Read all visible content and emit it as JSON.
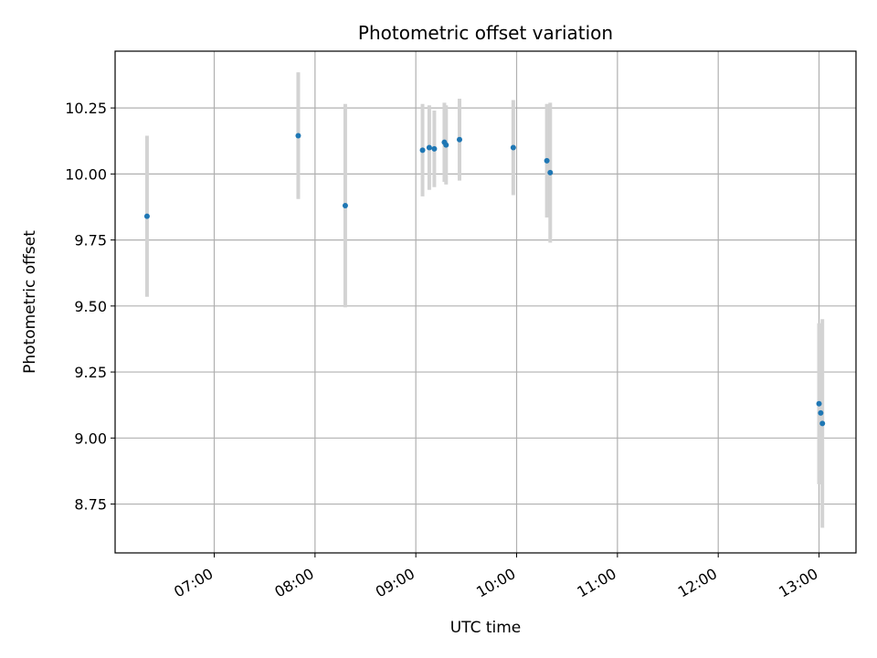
{
  "chart_data": {
    "type": "scatter",
    "title": "Photometric offset variation",
    "xlabel": "UTC time",
    "ylabel": "Photometric offset",
    "x_axis_kind": "time",
    "x_range": [
      "06:01",
      "13:22"
    ],
    "x_tick_labels": [
      "07:00",
      "08:00",
      "09:00",
      "10:00",
      "11:00",
      "12:00",
      "13:00"
    ],
    "ylim": [
      8.565,
      10.465
    ],
    "y_ticks": [
      8.75,
      9.0,
      9.25,
      9.5,
      9.75,
      10.0,
      10.25
    ],
    "y_tick_labels": [
      "8.75",
      "9.00",
      "9.25",
      "9.50",
      "9.75",
      "10.00",
      "10.25"
    ],
    "grid": true,
    "series": [
      {
        "marker_color": "#1f77b4",
        "errorbar_color": "#d3d3d3",
        "points": [
          {
            "x": "06:20",
            "y": 9.84,
            "yerr": 0.305
          },
          {
            "x": "07:50",
            "y": 10.145,
            "yerr": 0.24
          },
          {
            "x": "08:18",
            "y": 9.88,
            "yerr": 0.385
          },
          {
            "x": "09:04",
            "y": 10.09,
            "yerr": 0.175
          },
          {
            "x": "09:08",
            "y": 10.1,
            "yerr": 0.16
          },
          {
            "x": "09:11",
            "y": 10.095,
            "yerr": 0.145
          },
          {
            "x": "09:17",
            "y": 10.12,
            "yerr": 0.15
          },
          {
            "x": "09:18",
            "y": 10.11,
            "yerr": 0.15
          },
          {
            "x": "09:26",
            "y": 10.13,
            "yerr": 0.155
          },
          {
            "x": "09:58",
            "y": 10.1,
            "yerr": 0.18
          },
          {
            "x": "10:18",
            "y": 10.05,
            "yerr": 0.215
          },
          {
            "x": "10:20",
            "y": 10.005,
            "yerr": 0.265
          },
          {
            "x": "13:00",
            "y": 9.13,
            "yerr": 0.305
          },
          {
            "x": "13:01",
            "y": 9.095,
            "yerr": 0.27
          },
          {
            "x": "13:02",
            "y": 9.055,
            "yerr": 0.395
          }
        ]
      }
    ]
  }
}
